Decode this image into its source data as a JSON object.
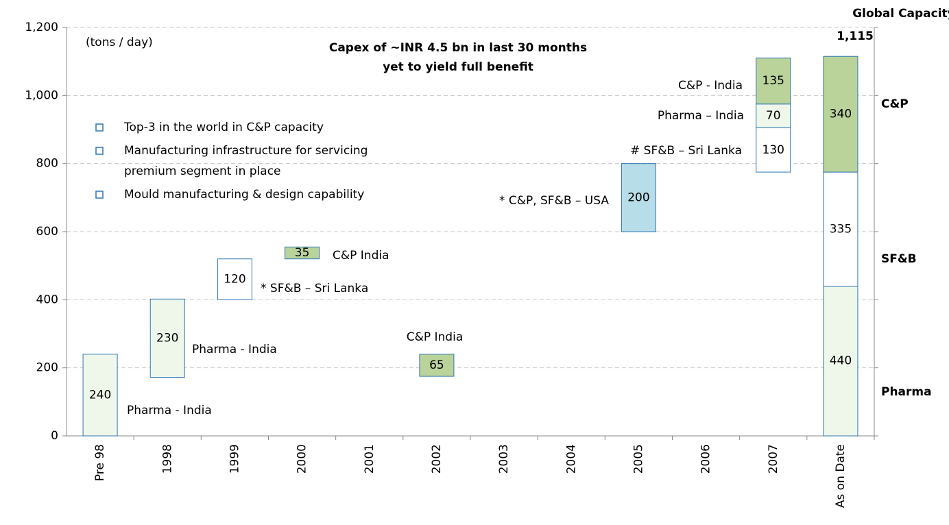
{
  "chart_data": {
    "type": "floating_bar",
    "title_lines": [
      "Capex of ~INR 4.5 bn in last 30 months",
      "yet to yield full benefit"
    ],
    "unit_label": "(tons / day)",
    "bullets": [
      [
        "Top-3 in the world in C&P capacity"
      ],
      [
        "Manufacturing infrastructure for servicing",
        "premium segment in place"
      ],
      [
        "Mould manufacturing & design capability"
      ]
    ],
    "categories": [
      "Pre 98",
      "1998",
      "1999",
      "2000",
      "2001",
      "2002",
      "2003",
      "2004",
      "2005",
      "2006",
      "2007",
      "As on Date"
    ],
    "ylim": [
      0,
      1200
    ],
    "yticks": [
      0,
      200,
      400,
      600,
      800,
      {
        "value": 1000,
        "label": "1,000"
      },
      {
        "value": 1200,
        "label": "1,200"
      }
    ],
    "grid": true,
    "segments": [
      [
        {
          "start": 0,
          "value": 240,
          "color": "#eef7ea",
          "note": "Pharma - India"
        }
      ],
      [
        {
          "start": 172,
          "value": 230,
          "color": "#eef7ea",
          "note": "Pharma - India"
        }
      ],
      [
        {
          "start": 400,
          "value": 120,
          "color": "#ffffff",
          "note": "* SF&B – Sri Lanka"
        }
      ],
      [
        {
          "start": 520,
          "value": 35,
          "color": "#b9d39a",
          "note": "C&P India"
        }
      ],
      [],
      [
        {
          "start": 175,
          "value": 65,
          "color": "#b9d39a",
          "note": "C&P India"
        }
      ],
      [],
      [],
      [
        {
          "start": 600,
          "value": 200,
          "color": "#b7dde8",
          "note": "* C&P, SF&B – USA"
        }
      ],
      [],
      [
        {
          "start": 775,
          "value": 130,
          "color": "#ffffff",
          "note": "# SF&B – Sri Lanka"
        },
        {
          "start": 905,
          "value": 70,
          "color": "#eef7ea",
          "note": "Pharma – India"
        },
        {
          "start": 975,
          "value": 135,
          "color": "#b9d39a",
          "note": "C&P - India"
        }
      ],
      [
        {
          "start": 0,
          "value": 440,
          "color": "#eef7ea"
        },
        {
          "start": 440,
          "value": 335,
          "color": "#ffffff"
        },
        {
          "start": 775,
          "value": 340,
          "color": "#b9d39a"
        }
      ]
    ],
    "total_title": "Global Capacity",
    "total": {
      "value": 1115,
      "label": "1,115"
    },
    "segment_labels": [
      "Pharma",
      "SF&B",
      "C&P"
    ],
    "outline_color": "#2e75b6"
  }
}
